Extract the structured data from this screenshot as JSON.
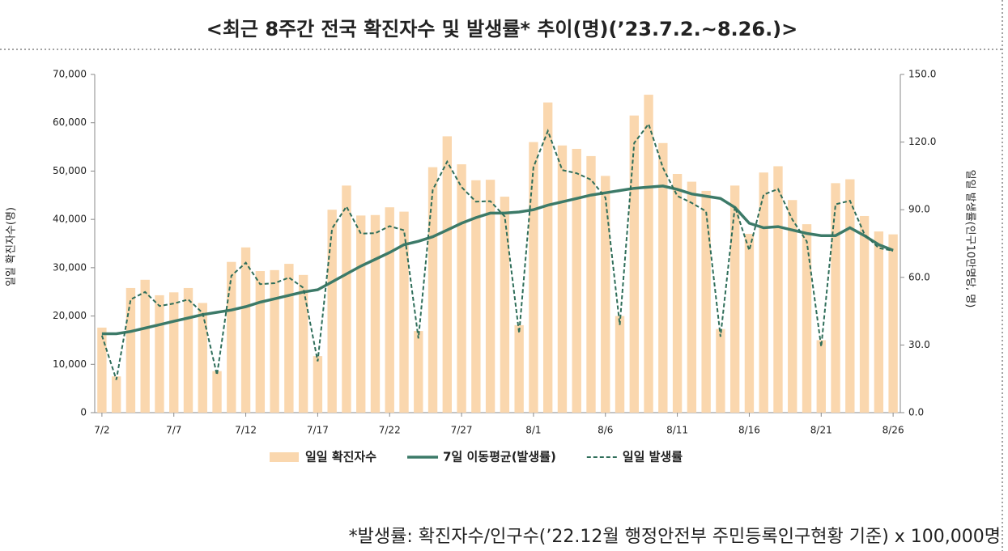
{
  "chart_data": {
    "type": "bar-line",
    "title": "<최근 8주간 전국 확진자수 및 발생률* 추이(명)(’23.7.2.~8.26.)>",
    "footnote": "*발생률: 확진자수/인구수(’22.12월 행정안전부 주민등록인구현황 기준) x 100,000명",
    "ylabel": "일일 확진자수(명)",
    "y2label": "일일 발생률(인구10만명당, 명)",
    "categories": [
      "7/2",
      null,
      null,
      null,
      null,
      "7/7",
      null,
      null,
      null,
      null,
      "7/12",
      null,
      null,
      null,
      null,
      "7/17",
      null,
      null,
      null,
      null,
      "7/22",
      null,
      null,
      null,
      null,
      "7/27",
      null,
      null,
      null,
      null,
      "8/1",
      null,
      null,
      null,
      null,
      "8/6",
      null,
      null,
      null,
      null,
      "8/11",
      null,
      null,
      null,
      null,
      "8/16",
      null,
      null,
      null,
      null,
      "8/21",
      null,
      null,
      null,
      null,
      "8/26"
    ],
    "series": [
      {
        "name": "일일 확진자수",
        "type": "bar",
        "color": "#fad7ae",
        "values": [
          17600,
          7500,
          25800,
          27500,
          24300,
          24900,
          25800,
          22700,
          8600,
          31200,
          34200,
          29300,
          29500,
          30800,
          28500,
          11700,
          42000,
          47000,
          40800,
          40900,
          42500,
          41600,
          16900,
          50800,
          57200,
          51400,
          48100,
          48200,
          44700,
          18100,
          56000,
          64200,
          55300,
          54600,
          53100,
          49000,
          20000,
          61500,
          65800,
          55800,
          49400,
          47800,
          45900,
          17300,
          47000,
          37000,
          49700,
          51000,
          44000,
          39000,
          15000,
          47500,
          48300,
          40700,
          37500,
          36900
        ]
      },
      {
        "name": "7일 이동평균(발생률)",
        "type": "line",
        "axis": "y2",
        "color": "#3c7a68",
        "values": [
          35,
          35,
          36,
          37.5,
          39,
          40.5,
          42,
          43.5,
          44.5,
          45.5,
          47,
          49,
          50.5,
          52,
          53.5,
          54.5,
          58,
          61.5,
          65,
          68,
          71,
          74.5,
          76,
          78,
          81,
          84,
          86.5,
          88.5,
          88.5,
          89,
          90,
          92,
          93.5,
          95,
          96.5,
          97.5,
          98.5,
          99.5,
          100,
          100.5,
          99,
          97,
          96,
          95,
          91,
          84,
          82,
          82.5,
          81,
          79.5,
          78.5,
          78.5,
          82,
          78.5,
          74.5,
          72
        ]
      },
      {
        "name": "일일 발생률",
        "type": "dashed",
        "axis": "y2",
        "color": "#2f6e5a",
        "values": [
          34.2,
          14.6,
          50.2,
          53.5,
          47.3,
          48.4,
          50.2,
          44.2,
          16.7,
          60.7,
          66.5,
          57.0,
          57.4,
          59.9,
          55.4,
          22.8,
          81.7,
          91.4,
          79.4,
          79.6,
          82.7,
          80.9,
          32.9,
          98.8,
          111.3,
          100.0,
          93.6,
          93.8,
          87.0,
          35.2,
          108.9,
          124.9,
          107.6,
          106.2,
          103.3,
          95.3,
          38.9,
          119.6,
          128.0,
          108.6,
          96.1,
          93.0,
          89.3,
          33.7,
          91.4,
          72.0,
          96.7,
          99.2,
          85.6,
          75.9,
          29.2,
          92.4,
          94.0,
          79.2,
          73.0,
          71.8
        ]
      }
    ],
    "ylim": [
      0,
      70000
    ],
    "yticks": [
      0,
      {
        "value": 10000,
        "label": "10,000"
      },
      {
        "value": 20000,
        "label": "20,000"
      },
      {
        "value": 30000,
        "label": "30,000"
      },
      {
        "value": 40000,
        "label": "40,000"
      },
      {
        "value": 50000,
        "label": "50,000"
      },
      {
        "value": 60000,
        "label": "60,000"
      },
      {
        "value": 70000,
        "label": "70,000"
      }
    ],
    "y2lim": [
      0,
      150
    ],
    "y2ticks": [
      {
        "value": 0,
        "label": "0.0"
      },
      {
        "value": 30,
        "label": "30.0"
      },
      {
        "value": 60,
        "label": "60.0"
      },
      {
        "value": 90,
        "label": "90.0"
      },
      {
        "value": 120,
        "label": "120.0"
      },
      {
        "value": 150,
        "label": "150.0"
      }
    ],
    "legend": "bottom"
  }
}
